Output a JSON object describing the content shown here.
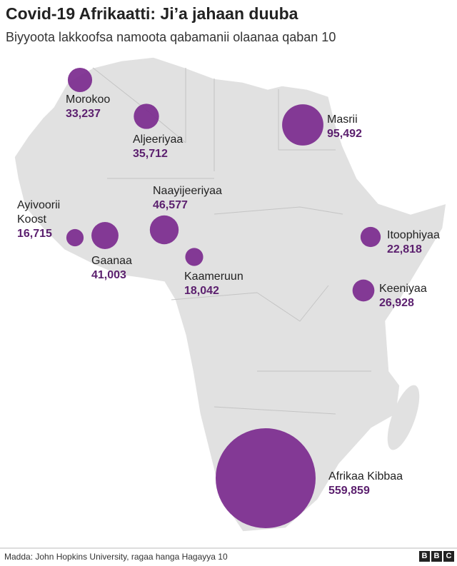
{
  "chart_data": {
    "type": "bubble-map",
    "title": "Covid-19 Afrikaatti: Ji’a jahaan duuba",
    "subtitle": "Biyyoota lakkoofsa namoota qabamanii olaanaa qaban 10",
    "categories": [
      "Morokoo",
      "Aljeeriyaa",
      "Masrii",
      "Naayijeeriyaa",
      "Ayivoorii Koost",
      "Gaanaa",
      "Kaameruun",
      "Itoophiyaa",
      "Keeniyaa",
      "Afrikaa Kibbaa"
    ],
    "values": [
      33237,
      35712,
      95492,
      46577,
      16715,
      41003,
      18042,
      22818,
      26928,
      559859
    ],
    "value_labels": [
      "33,237",
      "35,712",
      "95,492",
      "46,577",
      "16,715",
      "41,003",
      "18,042",
      "22,818",
      "26,928",
      "559,859"
    ],
    "color": "#7b2a8e",
    "source": "Madda: John Hopkins University, ragaa hanga Hagayya 10",
    "logo": "BBC"
  }
}
